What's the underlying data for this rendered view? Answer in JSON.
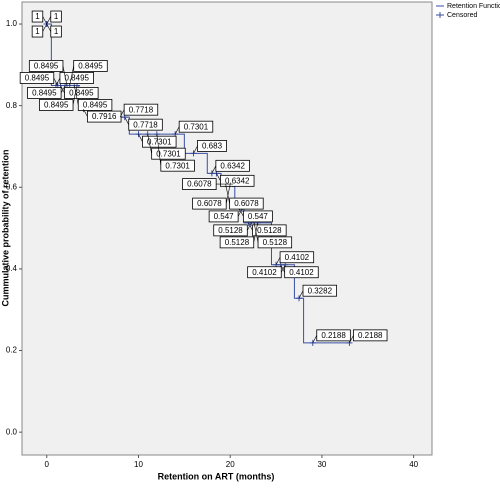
{
  "chart_data": {
    "type": "step",
    "x_label": "Retention on ART (months)",
    "y_label": "Cummulative probability of retention",
    "xlim": [
      -2.7,
      42
    ],
    "ylim": [
      -0.056,
      1.054
    ],
    "xticks": [
      0,
      10,
      20,
      30,
      40
    ],
    "yticks": [
      {
        "value": 0,
        "label": "0.0"
      },
      0.2,
      0.4,
      0.6,
      0.8,
      {
        "value": 1,
        "label": "1.0"
      }
    ],
    "series": [
      {
        "name": "Retention Function",
        "color": "#3a4fa3",
        "x": [
          0,
          0.5,
          0.5,
          3.5,
          3.5,
          6,
          6,
          9,
          9,
          15,
          15,
          17.5,
          17.5,
          19,
          19,
          20.5,
          20.5,
          21.5,
          21.5,
          24.5,
          24.5,
          27,
          27,
          28,
          28,
          33
        ],
        "values": [
          1,
          1,
          0.8495,
          0.8495,
          0.7916,
          0.7916,
          0.7718,
          0.7718,
          0.7301,
          0.7301,
          0.683,
          0.683,
          0.6342,
          0.6342,
          0.6078,
          0.6078,
          0.547,
          0.547,
          0.5128,
          0.5128,
          0.4102,
          0.4102,
          0.3282,
          0.3282,
          0.2188,
          0.2188
        ]
      },
      {
        "name": "Censored",
        "color": "#3a4fa3",
        "x": [
          0,
          0,
          0,
          0,
          1,
          1.5,
          2,
          2.5,
          3,
          3.3,
          2.2,
          1.2,
          4,
          8,
          8.5,
          10,
          11,
          12,
          14,
          16,
          18,
          18.5,
          19.5,
          20,
          20.3,
          21,
          21.3,
          22,
          22.3,
          22.6,
          23,
          25,
          25.5,
          26,
          27.5,
          29,
          33
        ],
        "values": [
          1,
          1,
          1,
          1,
          0.8495,
          0.8495,
          0.8495,
          0.8495,
          0.8495,
          0.8495,
          0.8495,
          0.8495,
          0.7916,
          0.7718,
          0.7718,
          0.7301,
          0.7301,
          0.7301,
          0.7301,
          0.683,
          0.6342,
          0.6342,
          0.6078,
          0.6078,
          0.6078,
          0.547,
          0.547,
          0.5128,
          0.5128,
          0.5128,
          0.5128,
          0.4102,
          0.4102,
          0.4102,
          0.3282,
          0.2188,
          0.2188
        ]
      }
    ],
    "legend": "top-right"
  }
}
